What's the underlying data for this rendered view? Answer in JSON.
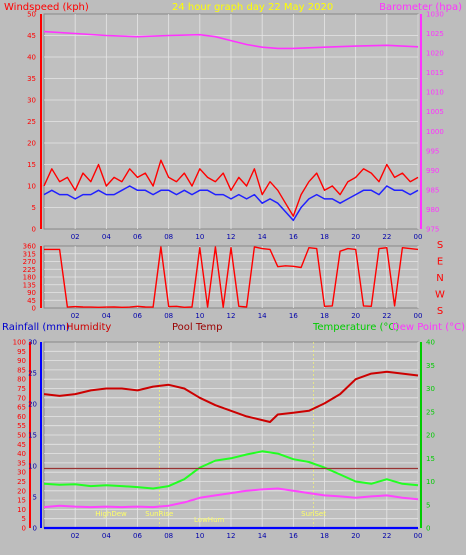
{
  "colors": {
    "bg": "#bdbdbd",
    "plot_bg": "#c0c0c0",
    "grid": "#e6e6e6",
    "wind": "#ff0000",
    "gust_avg": "#2020ff",
    "baro": "#ff33ff",
    "dir": "#ff0000",
    "temp": "#dd0000",
    "hum": "#cc0000",
    "dew": "#22ff22",
    "pool": "#ff44ff",
    "rain": "#0000ff",
    "hilo": "#993333",
    "sun": "#ffff66"
  },
  "chart_data": [
    {
      "type": "line",
      "title": "24 hour graph day   22 May 2020",
      "ylabel_left": "Windspeed (kph)",
      "ylabel_right": "Barometer (hpa)",
      "x_ticks": [
        "02",
        "04",
        "06",
        "08",
        "10",
        "12",
        "14",
        "16",
        "18",
        "20",
        "22",
        "00"
      ],
      "xlim": [
        0,
        24
      ],
      "ylim_left": [
        0,
        50
      ],
      "y_ticks_left": [
        "0",
        "5",
        "10",
        "15",
        "20",
        "25",
        "30",
        "35",
        "40",
        "45",
        "50"
      ],
      "ylim_right": [
        975,
        1030
      ],
      "y_ticks_right": [
        "975",
        "980",
        "985",
        "990",
        "995",
        "1000",
        "1005",
        "1010",
        "1015",
        "1020",
        "1025",
        "1030"
      ],
      "series": [
        {
          "key": "wind",
          "x": [
            0,
            0.5,
            1,
            1.5,
            2,
            2.5,
            3,
            3.5,
            4,
            4.5,
            5,
            5.5,
            6,
            6.5,
            7,
            7.5,
            8,
            8.5,
            9,
            9.5,
            10,
            10.5,
            11,
            11.5,
            12,
            12.5,
            13,
            13.5,
            14,
            14.5,
            15,
            15.5,
            16,
            16.5,
            17,
            17.5,
            18,
            18.5,
            19,
            19.5,
            20,
            20.5,
            21,
            21.5,
            22,
            22.5,
            23,
            23.5,
            24
          ],
          "values": [
            10,
            14,
            11,
            12,
            9,
            13,
            11,
            15,
            10,
            12,
            11,
            14,
            12,
            13,
            10,
            16,
            12,
            11,
            13,
            10,
            14,
            12,
            11,
            13,
            9,
            12,
            10,
            14,
            8,
            11,
            9,
            6,
            3,
            8,
            11,
            13,
            9,
            10,
            8,
            11,
            12,
            14,
            13,
            11,
            15,
            12,
            13,
            11,
            12
          ]
        },
        {
          "key": "gust_avg",
          "x": [
            0,
            0.5,
            1,
            1.5,
            2,
            2.5,
            3,
            3.5,
            4,
            4.5,
            5,
            5.5,
            6,
            6.5,
            7,
            7.5,
            8,
            8.5,
            9,
            9.5,
            10,
            10.5,
            11,
            11.5,
            12,
            12.5,
            13,
            13.5,
            14,
            14.5,
            15,
            15.5,
            16,
            16.5,
            17,
            17.5,
            18,
            18.5,
            19,
            19.5,
            20,
            20.5,
            21,
            21.5,
            22,
            22.5,
            23,
            23.5,
            24
          ],
          "values": [
            8,
            9,
            8,
            8,
            7,
            8,
            8,
            9,
            8,
            8,
            9,
            10,
            9,
            9,
            8,
            9,
            9,
            8,
            9,
            8,
            9,
            9,
            8,
            8,
            7,
            8,
            7,
            8,
            6,
            7,
            6,
            4,
            2,
            5,
            7,
            8,
            7,
            7,
            6,
            7,
            8,
            9,
            9,
            8,
            10,
            9,
            9,
            8,
            9
          ]
        },
        {
          "key": "baro",
          "axis": "right",
          "x": [
            0,
            2,
            4,
            6,
            8,
            10,
            11,
            12,
            13,
            14,
            15,
            16,
            18,
            20,
            22,
            24
          ],
          "values": [
            1025.5,
            1025,
            1024.5,
            1024.2,
            1024.5,
            1024.7,
            1024.2,
            1023.2,
            1022.2,
            1021.5,
            1021.2,
            1021.2,
            1021.5,
            1021.8,
            1022,
            1021.6
          ]
        }
      ]
    },
    {
      "type": "scatter",
      "ylabel_left": "",
      "compass": [
        "S",
        "E",
        "N",
        "W",
        "S"
      ],
      "x_ticks": [
        "02",
        "04",
        "06",
        "08",
        "10",
        "12",
        "14",
        "16",
        "18",
        "20",
        "22",
        "00"
      ],
      "xlim": [
        0,
        24
      ],
      "ylim_left": [
        0,
        360
      ],
      "y_ticks_left": [
        "0",
        "45",
        "90",
        "135",
        "180",
        "225",
        "270",
        "315",
        "360"
      ],
      "series": [
        {
          "key": "dir",
          "x": [
            0,
            0.5,
            1,
            1.5,
            2,
            2.5,
            3,
            3.5,
            4,
            4.5,
            5,
            5.5,
            6,
            6.5,
            7,
            7.5,
            8,
            8.5,
            9,
            9.5,
            10,
            10.5,
            11,
            11.5,
            12,
            12.5,
            13,
            13.5,
            14,
            14.5,
            15,
            15.5,
            16,
            16.5,
            17,
            17.5,
            18,
            18.5,
            19,
            19.5,
            20,
            20.5,
            21,
            21.5,
            22,
            22.5,
            23,
            23.5,
            24
          ],
          "values": [
            340,
            340,
            340,
            5,
            8,
            6,
            5,
            4,
            5,
            6,
            4,
            5,
            10,
            6,
            5,
            355,
            8,
            10,
            4,
            6,
            350,
            6,
            355,
            4,
            350,
            10,
            6,
            355,
            345,
            340,
            240,
            245,
            242,
            235,
            350,
            345,
            10,
            12,
            330,
            345,
            340,
            12,
            10,
            345,
            350,
            12,
            350,
            345,
            340
          ]
        }
      ]
    },
    {
      "type": "line",
      "labels_left": [
        "Rainfall (mm)",
        "Humidity",
        "Pool Temp"
      ],
      "labels_right": [
        "Temperature (°C)",
        "Dew Point (°C)"
      ],
      "x_ticks": [
        "02",
        "04",
        "06",
        "08",
        "10",
        "12",
        "14",
        "16",
        "18",
        "20",
        "22",
        "00"
      ],
      "xlim": [
        0,
        24
      ],
      "ylim_hum": [
        0,
        100
      ],
      "y_ticks_hum": [
        "0",
        "5",
        "10",
        "15",
        "20",
        "25",
        "30",
        "35",
        "40",
        "45",
        "50",
        "55",
        "60",
        "65",
        "70",
        "75",
        "80",
        "85",
        "90",
        "95",
        "100"
      ],
      "ylim_rain": [
        0,
        30
      ],
      "y_ticks_rain": [
        "0",
        "5",
        "10",
        "15",
        "20",
        "25",
        "30"
      ],
      "ylim_temp": [
        0,
        40
      ],
      "y_ticks_temp": [
        "0",
        "5",
        "10",
        "15",
        "20",
        "25",
        "30",
        "35",
        "40"
      ],
      "annotations": [
        {
          "text": "HighDew",
          "x": 4.3
        },
        {
          "text": "SunRise",
          "x": 7.4
        },
        {
          "text": "LowHum",
          "x": 10.6
        },
        {
          "text": "SunSet",
          "x": 17.3
        }
      ],
      "series": [
        {
          "key": "hum",
          "axis": "hum",
          "x": [
            0,
            1,
            2,
            3,
            4,
            5,
            6,
            7,
            8,
            9,
            10,
            11,
            12,
            13,
            14,
            14.5,
            15,
            16,
            17,
            18,
            19,
            20,
            21,
            22,
            23,
            24
          ],
          "values": [
            72,
            71,
            72,
            74,
            75,
            75,
            74,
            76,
            77,
            75,
            70,
            66,
            63,
            60,
            58,
            57,
            61,
            62,
            63,
            67,
            72,
            80,
            83,
            84,
            83,
            82
          ]
        },
        {
          "key": "dew",
          "axis": "temp",
          "x": [
            0,
            1,
            2,
            3,
            4,
            5,
            6,
            7,
            8,
            9,
            10,
            11,
            12,
            13,
            14,
            15,
            16,
            17,
            18,
            19,
            20,
            21,
            22,
            23,
            24
          ],
          "values": [
            9.5,
            9.3,
            9.4,
            9,
            9.2,
            9,
            8.8,
            8.5,
            9,
            10.5,
            13,
            14.5,
            15,
            15.8,
            16.5,
            16,
            14.8,
            14.2,
            13,
            11.5,
            10,
            9.5,
            10.5,
            9.5,
            9.2
          ]
        },
        {
          "key": "pool",
          "axis": "temp",
          "x": [
            0,
            1,
            2,
            3,
            4,
            5,
            6,
            7,
            8,
            9,
            10,
            11,
            12,
            13,
            14,
            15,
            16,
            17,
            18,
            19,
            20,
            21,
            22,
            23,
            24
          ],
          "values": [
            4.5,
            4.8,
            4.6,
            4.5,
            4.6,
            4.5,
            4.6,
            4.5,
            4.8,
            5.5,
            6.5,
            7,
            7.5,
            8,
            8.3,
            8.5,
            8,
            7.5,
            7,
            6.8,
            6.5,
            6.8,
            7,
            6.5,
            6.2
          ]
        },
        {
          "key": "hilo",
          "axis": "temp",
          "x": [
            0,
            24
          ],
          "values": [
            12.8,
            12.8
          ]
        },
        {
          "key": "rain",
          "axis": "rain",
          "x": [
            0,
            24
          ],
          "values": [
            0,
            0
          ]
        }
      ]
    }
  ]
}
